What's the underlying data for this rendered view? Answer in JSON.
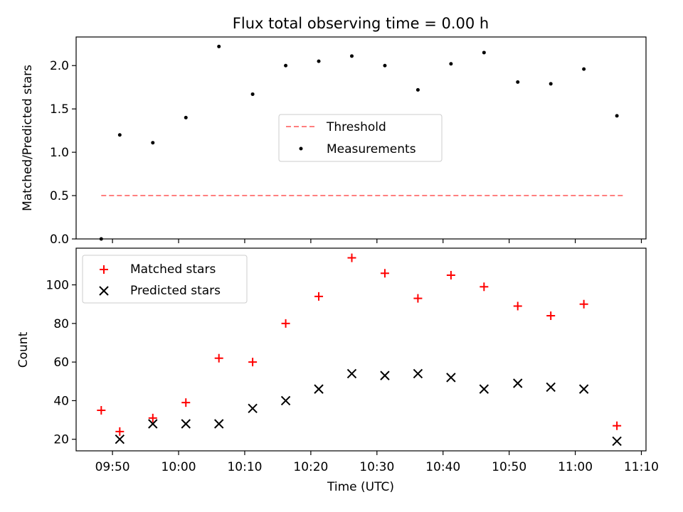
{
  "chart_data": [
    {
      "type": "scatter",
      "title": "Flux total observing time = 0.00 h",
      "xlabel": "",
      "ylabel": "Matched/Predicted stars",
      "ylim": [
        0,
        2.33
      ],
      "yticks": [
        0.0,
        0.5,
        1.0,
        1.5,
        2.0
      ],
      "ytick_labels": [
        "0.0",
        "0.5",
        "1.0",
        "1.5",
        "2.0"
      ],
      "xlim_min": [
        584.5,
        670.7
      ],
      "xticks_min": [
        590,
        600,
        610,
        620,
        630,
        640,
        650,
        660,
        670
      ],
      "legend_position": "center",
      "series": [
        {
          "name": "Threshold",
          "style": "dashed-line",
          "color": "#ff7f7f",
          "x": [
            588.3,
            667.6
          ],
          "y": [
            0.5,
            0.5
          ]
        },
        {
          "name": "Measurements",
          "style": "dot",
          "color": "#000000",
          "x": [
            588.3,
            591.1,
            596.1,
            601.1,
            606.1,
            611.2,
            616.2,
            621.2,
            626.2,
            631.2,
            636.2,
            641.2,
            646.2,
            651.3,
            656.3,
            661.3,
            666.3
          ],
          "y": [
            0.0,
            1.2,
            1.11,
            1.4,
            2.22,
            1.67,
            2.0,
            2.05,
            2.11,
            2.0,
            1.72,
            2.02,
            2.15,
            1.81,
            1.79,
            1.96,
            1.42
          ]
        }
      ]
    },
    {
      "type": "scatter",
      "title": "",
      "xlabel": "Time (UTC)",
      "ylabel": "Count",
      "ylim": [
        14,
        119
      ],
      "yticks": [
        20,
        40,
        60,
        80,
        100
      ],
      "ytick_labels": [
        "20",
        "40",
        "60",
        "80",
        "100"
      ],
      "xlim_min": [
        584.5,
        670.7
      ],
      "xticks_min": [
        590,
        600,
        610,
        620,
        630,
        640,
        650,
        660,
        670
      ],
      "xtick_labels": [
        "09:50",
        "10:00",
        "10:10",
        "10:20",
        "10:30",
        "10:40",
        "10:50",
        "11:00",
        "11:10"
      ],
      "legend_position": "upper left",
      "series": [
        {
          "name": "Matched stars",
          "marker": "+",
          "color": "#ff0000",
          "x": [
            588.3,
            591.1,
            596.1,
            601.1,
            606.1,
            611.2,
            616.2,
            621.2,
            626.2,
            631.2,
            636.2,
            641.2,
            646.2,
            651.3,
            656.3,
            661.3,
            666.3
          ],
          "y": [
            35,
            24,
            31,
            39,
            62,
            60,
            80,
            94,
            114,
            106,
            93,
            105,
            99,
            89,
            84,
            90,
            27
          ]
        },
        {
          "name": "Predicted stars",
          "marker": "x",
          "color": "#000000",
          "x": [
            591.1,
            596.1,
            601.1,
            606.1,
            611.2,
            616.2,
            621.2,
            626.2,
            631.2,
            636.2,
            641.2,
            646.2,
            651.3,
            656.3,
            661.3,
            666.3
          ],
          "y": [
            20,
            28,
            28,
            28,
            36,
            40,
            46,
            54,
            53,
            54,
            52,
            46,
            49,
            47,
            46,
            19
          ]
        }
      ]
    }
  ]
}
